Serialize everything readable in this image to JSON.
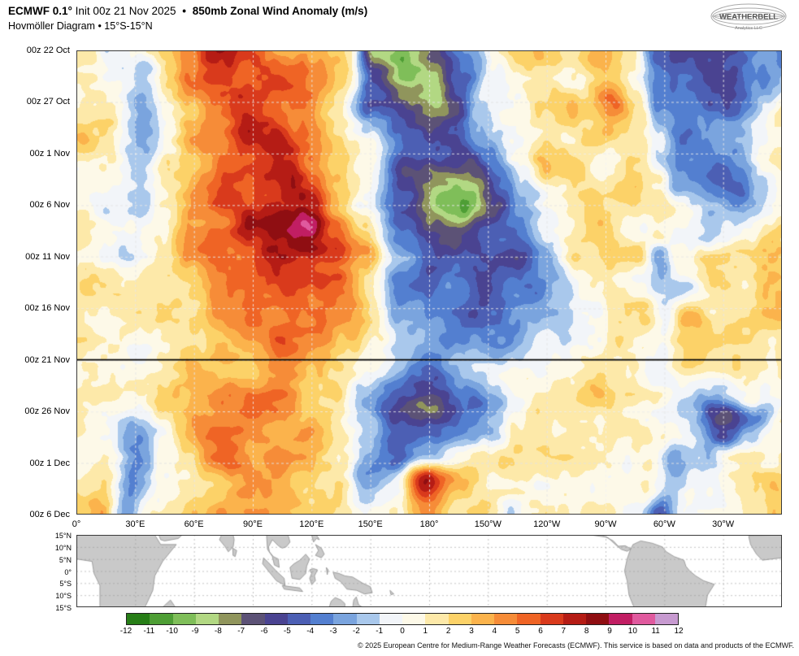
{
  "header": {
    "title_prefix": "ECMWF 0.1°",
    "title_init": "Init 00z 21 Nov 2025",
    "bullet": "•",
    "title_main": "850mb Zonal Wind Anomaly (m/s)",
    "subtitle": "Hovmöller Diagram • 15°S-15°N",
    "logo_text": "WEATHERBELL",
    "logo_subtext": "Analytics LLC"
  },
  "chart_data": {
    "type": "heatmap",
    "title": "850mb Zonal Wind Anomaly (m/s)",
    "subtitle": "Hovmöller Diagram 15°S-15°N, ECMWF 0.1° initialized 00z 21 Nov 2025",
    "units": "m/s",
    "x_axis": {
      "label": "longitude",
      "range_deg": [
        0,
        360
      ],
      "tick_step_deg": 30
    },
    "x_ticks": [
      "0°",
      "30°E",
      "60°E",
      "90°E",
      "120°E",
      "150°E",
      "180°",
      "150°W",
      "120°W",
      "90°W",
      "60°W",
      "30°W"
    ],
    "y_axis": {
      "label": "time",
      "start": "00z 22 Oct 2025",
      "end": "00z 6 Dec 2025",
      "total_days": 45,
      "tick_step_days": 5
    },
    "y_ticks": [
      "00z 22 Oct",
      "00z 27 Oct",
      "00z 1 Nov",
      "00z 6 Nov",
      "00z 11 Nov",
      "00z 16 Nov",
      "00z 21 Nov",
      "00z 26 Nov",
      "00z 1 Dec",
      "00z 6 Dec"
    ],
    "init_line": {
      "label": "00z 21 Nov",
      "day_offset": 30
    },
    "grid": {
      "lon_start_deg": 0,
      "lon_step_deg": 15,
      "time_step_days": 2.5,
      "note": "rows = time from 00z 22 Oct to 00z 6 Dec (2.5-day step), cols = longitude 0E..360E (15-deg step); values are approx zonal wind anomaly m/s read from the plot",
      "values": [
        [
          2,
          -1,
          1,
          3,
          5,
          7,
          5,
          4,
          3,
          2,
          -8,
          -10,
          -7,
          -4,
          0,
          2,
          2,
          2,
          3,
          1,
          -5,
          -5,
          -5,
          -3,
          -4
        ],
        [
          2,
          -1,
          -2,
          2,
          4,
          6,
          6,
          5,
          4,
          2,
          -6,
          -9,
          -8,
          -4,
          0,
          2,
          2,
          2,
          4,
          1,
          -4,
          -4,
          -6,
          -3,
          -2
        ],
        [
          2,
          0,
          -2,
          2,
          4,
          6,
          7,
          5,
          4,
          2,
          -4,
          -7,
          -8,
          -5,
          -1,
          1,
          2,
          2,
          6,
          2,
          -4,
          -4,
          -5,
          -2,
          0
        ],
        [
          2,
          1,
          -2,
          1,
          3,
          5,
          7,
          6,
          4,
          2,
          -2,
          -5,
          -6,
          -5,
          -2,
          1,
          2,
          2,
          3,
          2,
          -2,
          -4,
          -3,
          0,
          1
        ],
        [
          2,
          0,
          -2,
          1,
          3,
          5,
          6,
          7,
          5,
          3,
          0,
          -4,
          -5,
          -6,
          -3,
          1,
          3,
          2,
          1,
          2,
          -1,
          -4,
          -3,
          0,
          1
        ],
        [
          1,
          0,
          -1,
          2,
          4,
          6,
          7,
          8,
          6,
          4,
          0,
          -6,
          -8,
          -8,
          -4,
          -1,
          2,
          2,
          1,
          2,
          2,
          -3,
          -4,
          -1,
          1
        ],
        [
          1,
          -1,
          -1,
          2,
          4,
          6,
          7,
          8,
          7,
          4,
          -1,
          -5,
          -9,
          -10,
          -6,
          -2,
          1,
          2,
          1,
          2,
          3,
          1,
          -3,
          -1,
          1
        ],
        [
          2,
          1,
          0,
          2,
          4,
          6,
          7,
          9,
          10,
          6,
          2,
          -3,
          -6,
          -7,
          -5,
          -3,
          0,
          2,
          2,
          1,
          2,
          0,
          -2,
          0,
          2
        ],
        [
          2,
          1,
          0,
          1,
          3,
          5,
          6,
          8,
          9,
          7,
          3,
          -2,
          -5,
          -5,
          -4,
          -5,
          -2,
          1,
          2,
          2,
          -3,
          1,
          2,
          1,
          2
        ],
        [
          2,
          1,
          1,
          2,
          3,
          4,
          6,
          7,
          6,
          5,
          2,
          -3,
          -4,
          -4,
          -5,
          -4,
          -1,
          1,
          1,
          0,
          -2,
          -1,
          1,
          1,
          2
        ],
        [
          2,
          2,
          1,
          2,
          3,
          4,
          5,
          6,
          5,
          4,
          1,
          -2,
          -4,
          -5,
          -4,
          -3,
          -2,
          0,
          2,
          2,
          -1,
          4,
          2,
          2,
          2
        ],
        [
          1,
          1,
          1,
          2,
          3,
          4,
          5,
          5,
          5,
          3,
          1,
          -2,
          -3,
          -3,
          -3,
          -2,
          -1,
          1,
          2,
          1,
          0,
          2,
          1,
          1,
          1
        ],
        [
          1,
          1,
          0,
          2,
          3,
          4,
          4,
          5,
          4,
          2,
          0,
          -2,
          -3,
          -2,
          -2,
          -1,
          0,
          1,
          1,
          1,
          0,
          1,
          1,
          1,
          1
        ],
        [
          1,
          1,
          1,
          2,
          3,
          4,
          4,
          4,
          3,
          2,
          -1,
          -4,
          -5,
          -3,
          -1,
          1,
          1,
          1,
          2,
          1,
          0,
          -1,
          -2,
          0,
          1
        ],
        [
          1,
          0,
          0,
          2,
          3,
          4,
          5,
          4,
          3,
          1,
          -2,
          -6,
          -7,
          -4,
          -2,
          0,
          2,
          1,
          1,
          0,
          -1,
          -2,
          -6,
          -3,
          1
        ],
        [
          1,
          0,
          -2,
          1,
          3,
          5,
          5,
          4,
          4,
          2,
          -2,
          -4,
          -4,
          -3,
          -2,
          1,
          2,
          1,
          1,
          1,
          0,
          -2,
          -4,
          -1,
          1
        ],
        [
          1,
          1,
          -3,
          1,
          2,
          4,
          5,
          4,
          4,
          2,
          -3,
          -4,
          -2,
          1,
          1,
          1,
          2,
          1,
          1,
          1,
          -3,
          -1,
          1,
          1,
          1
        ],
        [
          2,
          2,
          -3,
          1,
          2,
          3,
          4,
          4,
          3,
          2,
          -1,
          -1,
          7,
          3,
          0,
          0,
          1,
          1,
          1,
          1,
          -2,
          0,
          1,
          1,
          2
        ],
        [
          3,
          3,
          -3,
          2,
          2,
          3,
          3,
          3,
          3,
          1,
          0,
          1,
          5,
          2,
          1,
          0,
          1,
          1,
          1,
          0,
          -4,
          -1,
          1,
          2,
          3
        ]
      ]
    },
    "colorbar": {
      "levels": [
        -12,
        -11,
        -10,
        -9,
        -8,
        -7,
        -6,
        -5,
        -4,
        -3,
        -2,
        -1,
        0,
        1,
        2,
        3,
        4,
        5,
        6,
        7,
        8,
        9,
        10,
        11,
        12
      ],
      "colors": [
        "#277e17",
        "#4e9e35",
        "#7fbe59",
        "#b2d883",
        "#90955c",
        "#5c5276",
        "#4a4391",
        "#4c5fb4",
        "#537fd0",
        "#7aa4de",
        "#a9c8ec",
        "#f2f5f9",
        "#fdf9e8",
        "#fde9a9",
        "#fcd268",
        "#fbb34c",
        "#f68c38",
        "#ef6425",
        "#d93a1c",
        "#b51c15",
        "#8f0e12",
        "#c11e63",
        "#e05a9e",
        "#c79ad0"
      ]
    }
  },
  "map": {
    "lat_labels": [
      "15°N",
      "10°N",
      "5°N",
      "0°",
      "5°S",
      "10°S",
      "15°S"
    ],
    "land_color": "#c9c9c9",
    "border_color": "#8f8f8f",
    "land_polygons": [
      [
        [
          0,
          15
        ],
        [
          40,
          15
        ],
        [
          43,
          11
        ],
        [
          51,
          11
        ],
        [
          44,
          4
        ],
        [
          40,
          -2
        ],
        [
          39,
          -8
        ],
        [
          35,
          -15
        ],
        [
          12,
          -15
        ],
        [
          12,
          -6
        ],
        [
          9,
          -1
        ],
        [
          8,
          4
        ],
        [
          0,
          5
        ]
      ],
      [
        [
          343,
          14.5
        ],
        [
          360,
          15
        ],
        [
          360,
          5.5
        ],
        [
          350,
          4.5
        ],
        [
          347,
          7
        ],
        [
          344,
          11
        ]
      ],
      [
        [
          44,
          -15
        ],
        [
          48,
          -12
        ],
        [
          50.5,
          -15
        ]
      ],
      [
        [
          42,
          15
        ],
        [
          54,
          15
        ],
        [
          52,
          13.5
        ],
        [
          45,
          12.5
        ],
        [
          43,
          13
        ]
      ],
      [
        [
          74,
          15
        ],
        [
          80,
          15
        ],
        [
          80.5,
          13
        ],
        [
          80,
          10
        ],
        [
          77.5,
          8
        ],
        [
          76,
          10
        ],
        [
          73,
          13
        ]
      ],
      [
        [
          79.8,
          9.5
        ],
        [
          81.8,
          8.5
        ],
        [
          81,
          6
        ],
        [
          79.9,
          6.5
        ]
      ],
      [
        [
          97,
          15
        ],
        [
          108,
          15
        ],
        [
          109,
          12
        ],
        [
          107,
          10
        ],
        [
          105,
          9.5
        ],
        [
          103,
          10.5
        ],
        [
          100,
          13
        ],
        [
          98,
          10
        ],
        [
          98.5,
          8
        ],
        [
          100.5,
          6
        ],
        [
          103,
          5
        ],
        [
          103.5,
          1.5
        ],
        [
          101,
          2.5
        ],
        [
          100,
          6
        ],
        [
          97.5,
          9
        ]
      ],
      [
        [
          95.5,
          5.5
        ],
        [
          98,
          3.5
        ],
        [
          102,
          0
        ],
        [
          106,
          -3
        ],
        [
          106.5,
          -6
        ],
        [
          102,
          -4
        ],
        [
          98,
          0
        ],
        [
          95,
          3
        ]
      ],
      [
        [
          105,
          -6
        ],
        [
          114,
          -7
        ],
        [
          115.5,
          -8.5
        ],
        [
          106,
          -7.5
        ]
      ],
      [
        [
          109,
          1.5
        ],
        [
          111,
          3
        ],
        [
          114,
          4.5
        ],
        [
          117,
          7
        ],
        [
          119,
          5
        ],
        [
          117.5,
          2
        ],
        [
          117,
          -1
        ],
        [
          114,
          -3.5
        ],
        [
          110,
          -3
        ]
      ],
      [
        [
          119,
          0.5
        ],
        [
          121,
          1
        ],
        [
          123,
          0.5
        ],
        [
          121.5,
          -2
        ],
        [
          122,
          -4
        ],
        [
          120,
          -5.5
        ],
        [
          119,
          -3
        ],
        [
          120,
          -1
        ]
      ],
      [
        [
          120,
          15
        ],
        [
          122.5,
          15
        ],
        [
          124,
          13
        ],
        [
          122.5,
          13.5
        ],
        [
          121,
          12
        ]
      ],
      [
        [
          122,
          11
        ],
        [
          125,
          9.5
        ],
        [
          126.5,
          7
        ],
        [
          125,
          5.5
        ],
        [
          122,
          6.5
        ],
        [
          123.5,
          8.5
        ]
      ],
      [
        [
          127.5,
          1.5
        ],
        [
          128.5,
          0.5
        ],
        [
          128,
          -1.5
        ]
      ],
      [
        [
          131,
          -0.5
        ],
        [
          134,
          -1
        ],
        [
          137,
          -2
        ],
        [
          141,
          -2.5
        ],
        [
          146,
          -5
        ],
        [
          150,
          -6.5
        ],
        [
          151,
          -9
        ],
        [
          147,
          -9.5
        ],
        [
          143,
          -8
        ],
        [
          138,
          -7.5
        ],
        [
          135,
          -4.5
        ],
        [
          132,
          -3
        ]
      ],
      [
        [
          129,
          -15
        ],
        [
          130,
          -12.5
        ],
        [
          132,
          -11
        ],
        [
          135,
          -12
        ],
        [
          137,
          -13.5
        ],
        [
          137,
          -15
        ]
      ],
      [
        [
          141,
          -15
        ],
        [
          141.5,
          -12
        ],
        [
          142.8,
          -10.7
        ],
        [
          144,
          -14
        ],
        [
          146,
          -15
        ]
      ],
      [
        [
          160,
          -8
        ],
        [
          162,
          -9.5
        ],
        [
          160.5,
          -9.8
        ]
      ],
      [
        [
          262,
          15
        ],
        [
          271,
          14
        ],
        [
          275,
          11
        ],
        [
          278,
          9
        ],
        [
          281,
          8.2
        ],
        [
          283,
          9.2
        ],
        [
          280,
          10.5
        ],
        [
          276.5,
          10.3
        ],
        [
          274,
          12.5
        ],
        [
          268,
          15
        ]
      ],
      [
        [
          282.5,
          8.5
        ],
        [
          284,
          11
        ],
        [
          288,
          12.5
        ],
        [
          294,
          11.5
        ],
        [
          299,
          10
        ],
        [
          301,
          8
        ],
        [
          305,
          6
        ],
        [
          310,
          4.5
        ],
        [
          311,
          2
        ],
        [
          313,
          0
        ],
        [
          316,
          -2
        ],
        [
          320,
          -4
        ],
        [
          325.5,
          -5.5
        ],
        [
          322,
          -10
        ],
        [
          321,
          -15
        ],
        [
          284.5,
          -15
        ],
        [
          282,
          -10
        ],
        [
          281,
          -4
        ],
        [
          279.7,
          0
        ],
        [
          281,
          5
        ]
      ]
    ]
  },
  "footer": {
    "copyright": "© 2025 European Centre for Medium-Range Weather Forecasts (ECMWF). This service is based on data and products of the ECMWF."
  }
}
